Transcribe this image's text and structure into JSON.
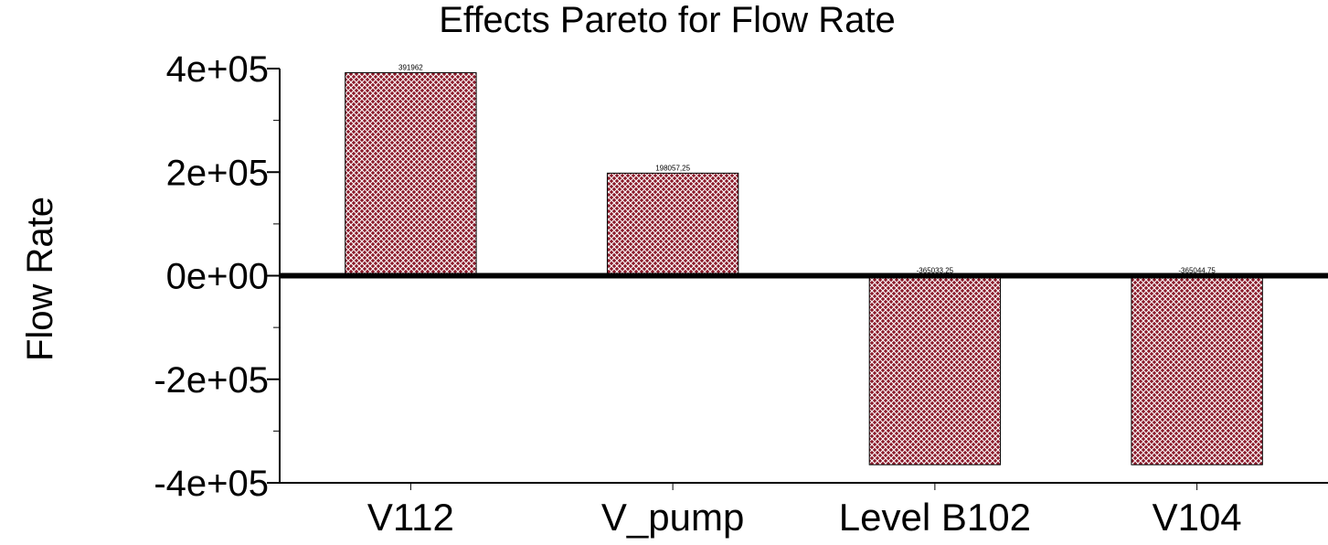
{
  "chart_data": {
    "type": "bar",
    "title": "Effects Pareto for Flow Rate",
    "xlabel": "",
    "ylabel": "Flow Rate",
    "categories": [
      "V112",
      "V_pump",
      "Level B102",
      "V104"
    ],
    "values": [
      391962,
      198057.25,
      -365033.25,
      -365044.75
    ],
    "data_labels": [
      "391962",
      "198057,25",
      "-365033,25",
      "-365044,75"
    ],
    "ylim": [
      -400000,
      400000
    ],
    "yticks": [
      400000,
      200000,
      0,
      -200000,
      -400000
    ],
    "ytick_labels": [
      "4e+05",
      "2e+05",
      "0e+00",
      "-2e+05",
      "-4e+05"
    ],
    "grid": false,
    "bar_color": "#8b1a2a",
    "bar_hatch_color": "#ffffff"
  }
}
